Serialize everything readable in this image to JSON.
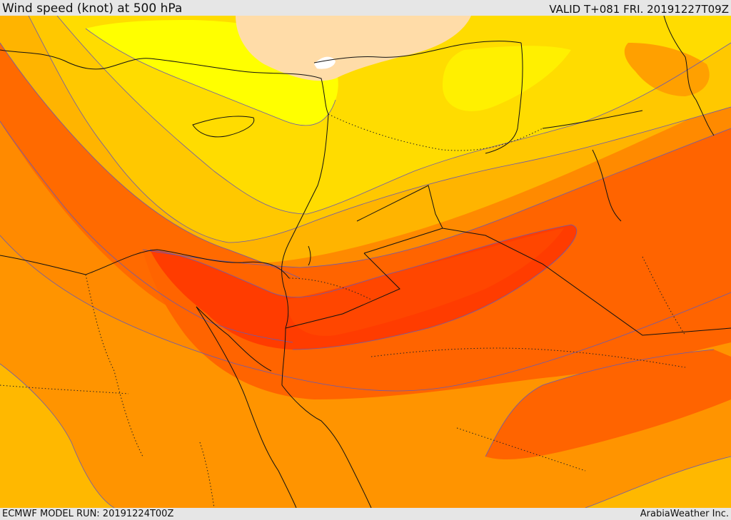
{
  "header": {
    "title": "Wind speed (knot) at 500 hPa",
    "valid_time": "VALID T+081 FRI. 20191227T09Z"
  },
  "footer": {
    "model_run": "ECMWF MODEL RUN: 20191224T00Z",
    "credit": "ArabiaWeather Inc."
  },
  "map": {
    "variable": "wind speed at 500 hPa",
    "color_bands": [
      "#ffdca8",
      "#ffff00",
      "#ffe000",
      "#ffc800",
      "#ffb000",
      "#ff9a00",
      "#ff8200",
      "#ff6400",
      "#ff4a00",
      "#ff3c00"
    ]
  }
}
